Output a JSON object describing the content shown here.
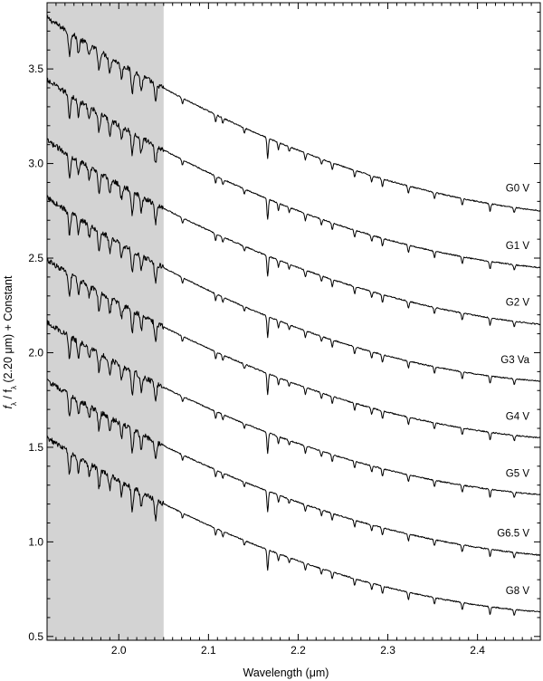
{
  "chart_data": {
    "type": "line",
    "title": "",
    "xlabel": "Wavelength (μm)",
    "ylabel": {
      "parts": [
        "f",
        "λ",
        " / f",
        "λ",
        " (2.20 μm) + Constant"
      ]
    },
    "xlim": [
      1.92,
      2.47
    ],
    "ylim": [
      0.48,
      3.85
    ],
    "x_ticks": [
      2.0,
      2.1,
      2.2,
      2.3,
      2.4
    ],
    "x_tick_labels": [
      "2.0",
      "2.1",
      "2.2",
      "2.3",
      "2.4"
    ],
    "y_ticks": [
      0.5,
      1.0,
      1.5,
      2.0,
      2.5,
      3.0,
      3.5
    ],
    "y_tick_labels": [
      "0.5",
      "1.0",
      "1.5",
      "2.0",
      "2.5",
      "3.0",
      "3.5"
    ],
    "grid": false,
    "shaded_region": {
      "x": [
        1.92,
        2.05
      ],
      "color": "#d3d3d3"
    },
    "series": [
      {
        "name": "G0 V",
        "y_at_start": 3.77,
        "y_at_2_20": 3.07,
        "y_at_end": 2.75
      },
      {
        "name": "G1 V",
        "y_at_start": 3.44,
        "y_at_2_20": 2.75,
        "y_at_end": 2.45
      },
      {
        "name": "G2 V",
        "y_at_start": 3.12,
        "y_at_2_20": 2.45,
        "y_at_end": 2.15
      },
      {
        "name": "G3 Va",
        "y_at_start": 2.82,
        "y_at_2_20": 2.13,
        "y_at_end": 1.85
      },
      {
        "name": "G4 V",
        "y_at_start": 2.49,
        "y_at_2_20": 1.83,
        "y_at_end": 1.55
      },
      {
        "name": "G5 V",
        "y_at_start": 2.16,
        "y_at_2_20": 1.52,
        "y_at_end": 1.25
      },
      {
        "name": "G6.5 V",
        "y_at_start": 1.85,
        "y_at_2_20": 1.21,
        "y_at_end": 0.93
      },
      {
        "name": "G8 V",
        "y_at_start": 1.55,
        "y_at_2_20": 0.9,
        "y_at_end": 0.63
      }
    ],
    "absorption_features_um": [
      1.945,
      1.955,
      1.967,
      1.978,
      1.99,
      2.003,
      2.015,
      2.025,
      2.041,
      2.071,
      2.108,
      2.116,
      2.14,
      2.166,
      2.178,
      2.19,
      2.208,
      2.226,
      2.238,
      2.263,
      2.282,
      2.294,
      2.323,
      2.352,
      2.383,
      2.414,
      2.441
    ]
  },
  "colors": {
    "line": "#000000",
    "shade": "#d3d3d3",
    "background": "#ffffff"
  }
}
